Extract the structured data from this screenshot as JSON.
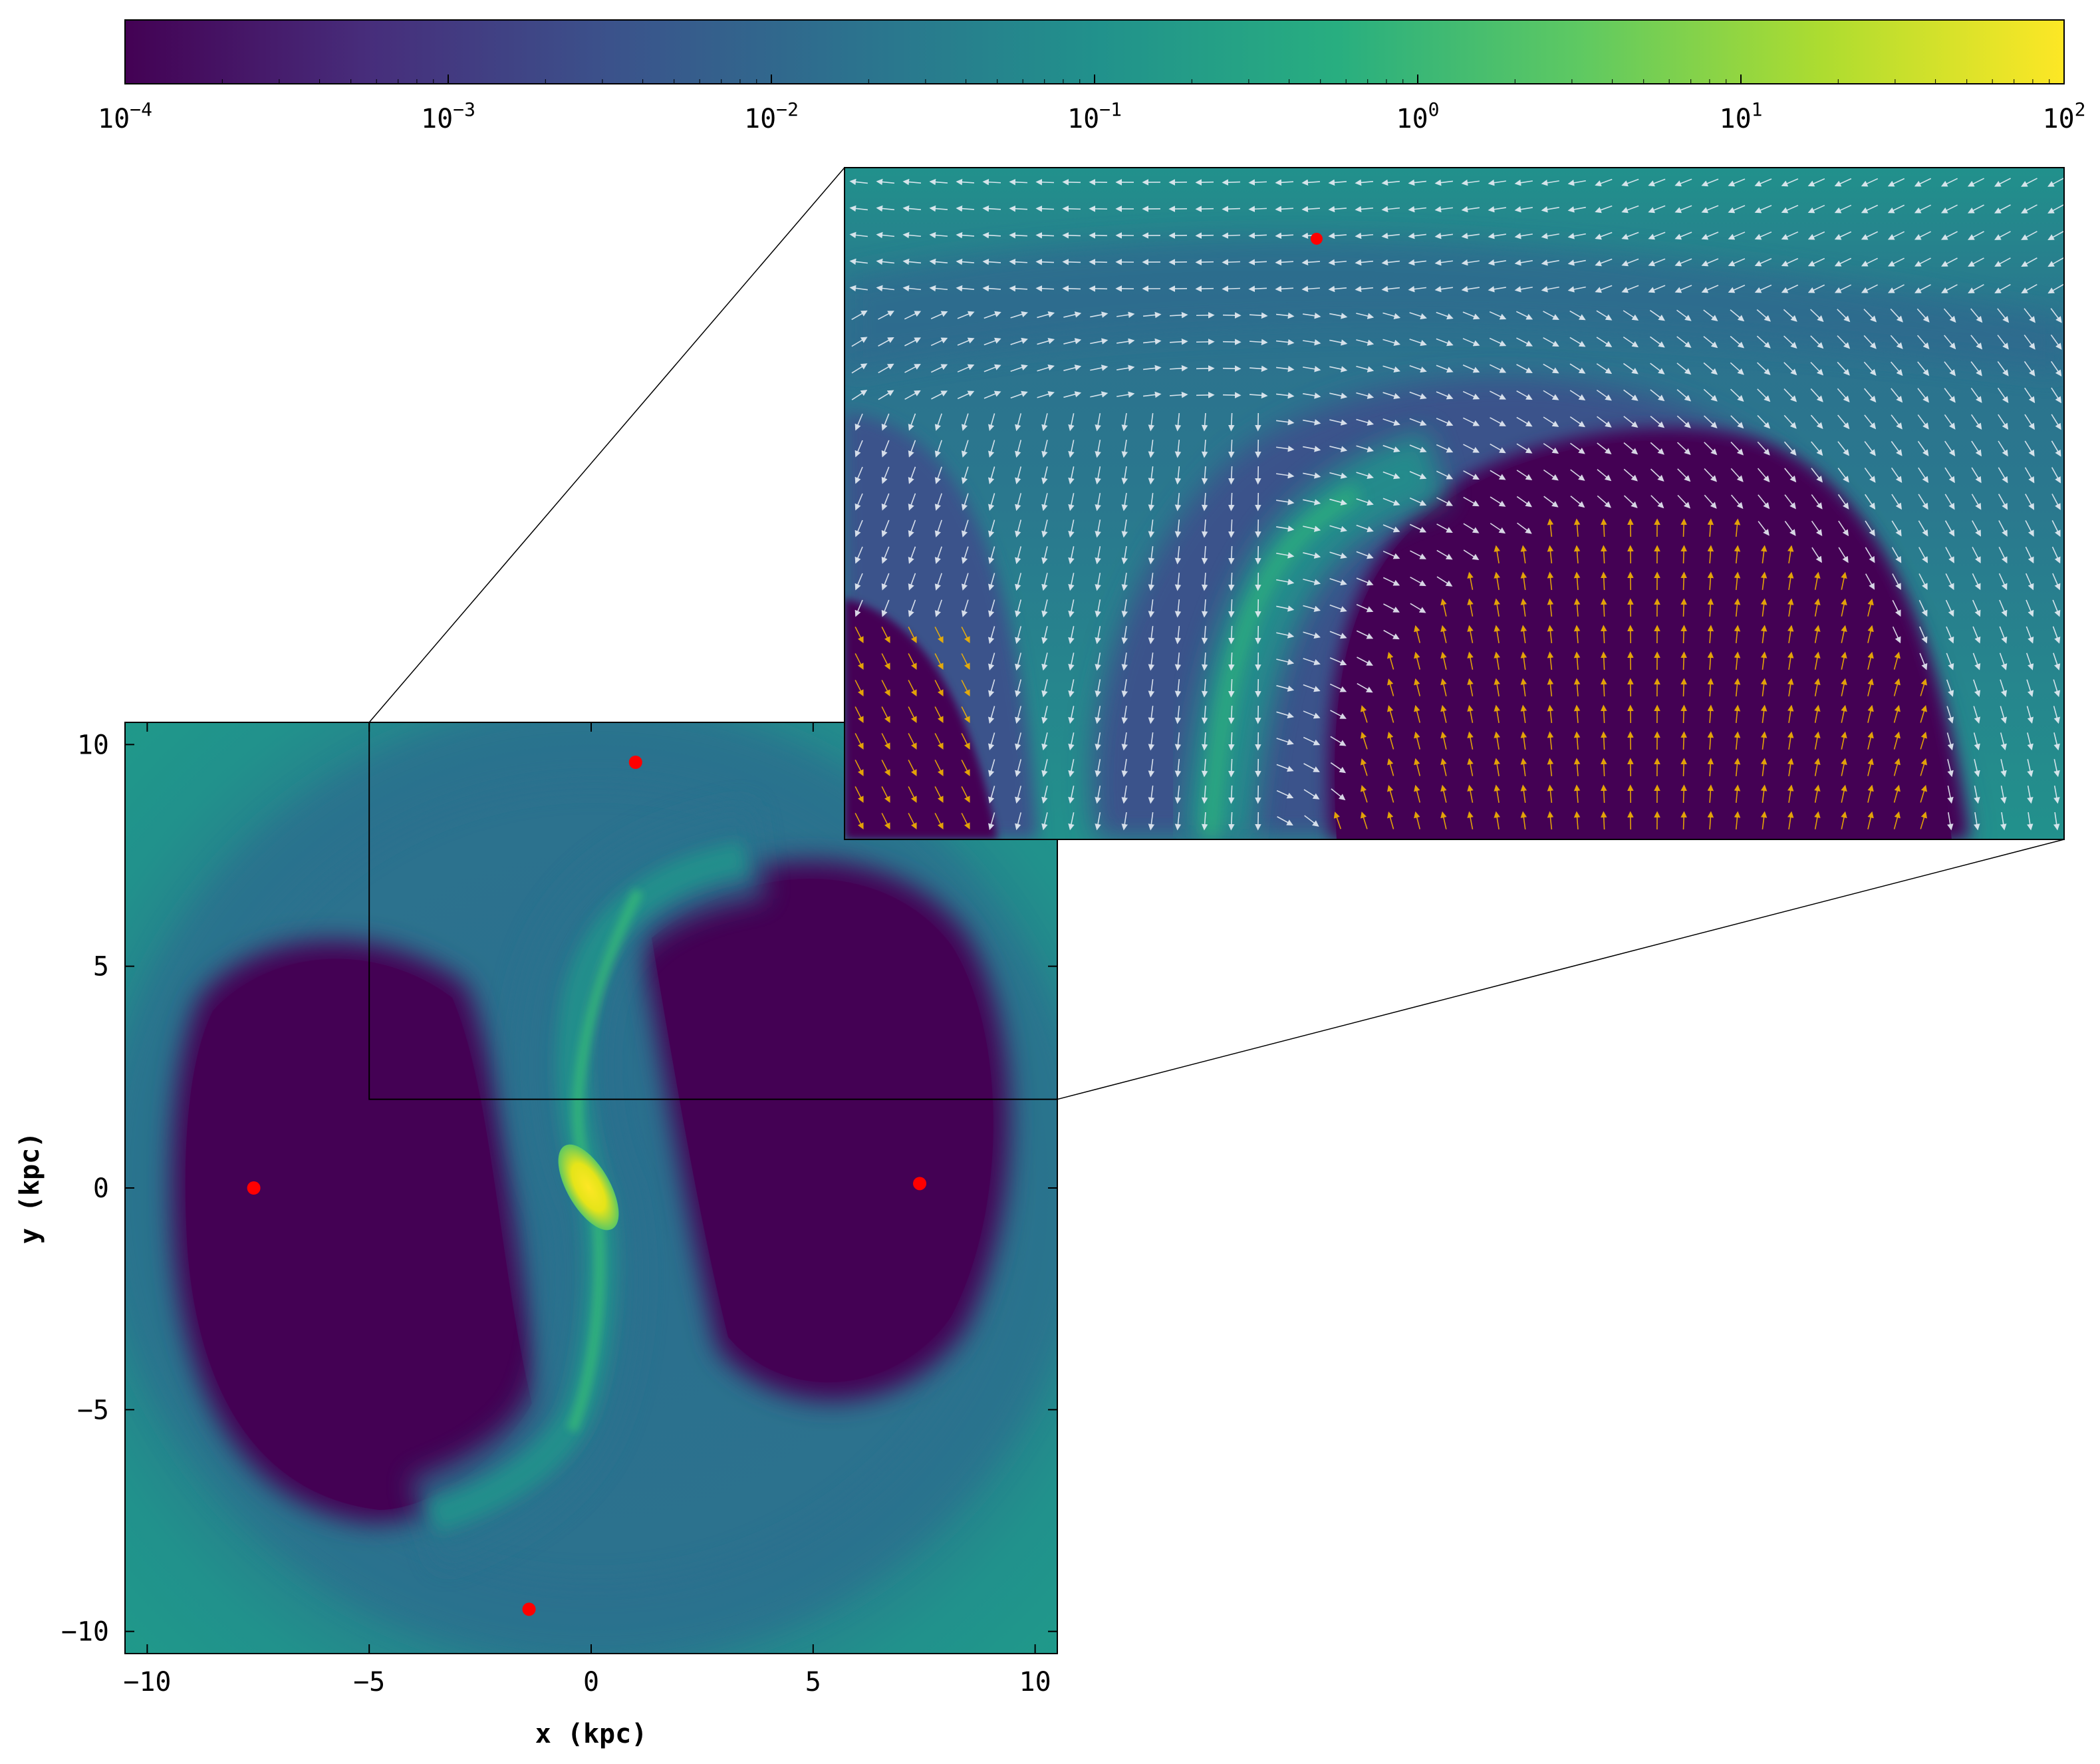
{
  "colorbar": {
    "colormap": "viridis",
    "scale": "log",
    "range": [
      0.0001,
      100
    ],
    "tick_values": [
      0.0001,
      0.001,
      0.01,
      0.1,
      1,
      10,
      100
    ],
    "tick_base": [
      "10",
      "10",
      "10",
      "10",
      "10",
      "10",
      "10"
    ],
    "tick_exp": [
      "−4",
      "−3",
      "−2",
      "−1",
      "0",
      "1",
      "2"
    ]
  },
  "chart_data": {
    "type": "heatmap",
    "title": "",
    "xlabel": "x (kpc)",
    "ylabel": "y (kpc)",
    "xlim": [
      -10.5,
      10.5
    ],
    "ylim": [
      -10.5,
      10.5
    ],
    "xticks": [
      -10,
      -5,
      0,
      5,
      10
    ],
    "xtick_labels": [
      "−10",
      "−5",
      "0",
      "5",
      "10"
    ],
    "yticks": [
      -10,
      -5,
      0,
      5,
      10
    ],
    "ytick_labels": [
      "−10",
      "−5",
      "0",
      "5",
      "10"
    ],
    "colors": {
      "low": "#440154",
      "mid": "#21918c",
      "high": "#fde725",
      "marker": "#ff0000",
      "arrow_white": "#ffffff",
      "arrow_orange": "#f5b400"
    },
    "markers": [
      {
        "x": 1.0,
        "y": 9.6
      },
      {
        "x": -7.6,
        "y": 0.0
      },
      {
        "x": 7.4,
        "y": 0.1
      },
      {
        "x": -1.4,
        "y": -9.5
      }
    ],
    "inset": {
      "xlim": [
        -5.0,
        10.5
      ],
      "ylim": [
        2.0,
        10.5
      ],
      "content": "zoomed density map with velocity vector field"
    }
  }
}
